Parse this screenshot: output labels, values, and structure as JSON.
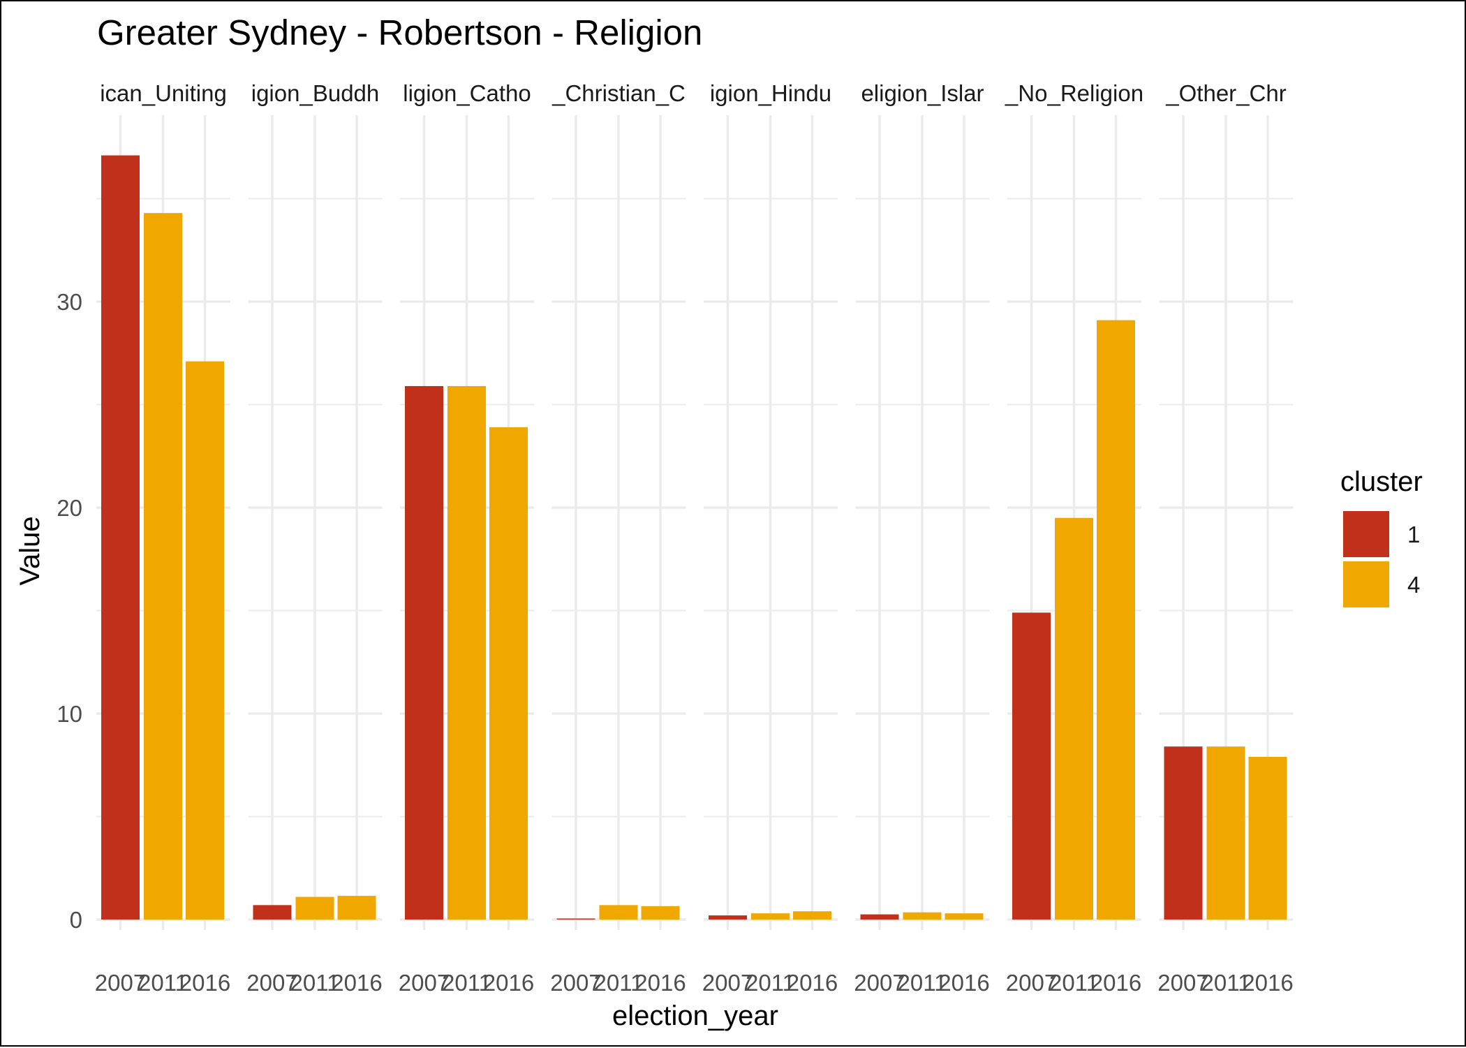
{
  "chart_data": {
    "type": "bar",
    "title": "Greater Sydney - Robertson - Religion",
    "xlabel": "election_year",
    "ylabel": "Value",
    "ylim": [
      0,
      37
    ],
    "y_ticks": [
      0,
      10,
      20,
      30
    ],
    "grid": true,
    "legend_placement": "right",
    "legend_title": "cluster",
    "colors": {
      "1": "#C0301A",
      "4": "#F0A800"
    },
    "strip_labels_visible": [
      "ican_Uniting",
      "igion_Buddh",
      "ligion_Catho",
      "_Christian_C",
      "igion_Hindu",
      "eligion_Islar",
      "_No_Religion",
      "_Other_Chr"
    ],
    "legend": [
      {
        "label": "1",
        "color": "#C0301A"
      },
      {
        "label": "4",
        "color": "#F0A800"
      }
    ],
    "panels": [
      {
        "label": "ican_Uniting",
        "bars": [
          {
            "year": "2007",
            "cluster": "1",
            "value": 37.1
          },
          {
            "year": "2011",
            "cluster": "4",
            "value": 34.3
          },
          {
            "year": "2016",
            "cluster": "4",
            "value": 27.1
          }
        ]
      },
      {
        "label": "igion_Buddh",
        "bars": [
          {
            "year": "2007",
            "cluster": "1",
            "value": 0.7
          },
          {
            "year": "2011",
            "cluster": "4",
            "value": 1.1
          },
          {
            "year": "2016",
            "cluster": "4",
            "value": 1.15
          }
        ]
      },
      {
        "label": "ligion_Catho",
        "bars": [
          {
            "year": "2007",
            "cluster": "1",
            "value": 25.9
          },
          {
            "year": "2011",
            "cluster": "4",
            "value": 25.9
          },
          {
            "year": "2016",
            "cluster": "4",
            "value": 23.9
          }
        ]
      },
      {
        "label": "_Christian_C",
        "bars": [
          {
            "year": "2007",
            "cluster": "1",
            "value": 0.05
          },
          {
            "year": "2011",
            "cluster": "4",
            "value": 0.7
          },
          {
            "year": "2016",
            "cluster": "4",
            "value": 0.65
          }
        ]
      },
      {
        "label": "igion_Hindu",
        "bars": [
          {
            "year": "2007",
            "cluster": "1",
            "value": 0.2
          },
          {
            "year": "2011",
            "cluster": "4",
            "value": 0.3
          },
          {
            "year": "2016",
            "cluster": "4",
            "value": 0.4
          }
        ]
      },
      {
        "label": "eligion_Islar",
        "bars": [
          {
            "year": "2007",
            "cluster": "1",
            "value": 0.25
          },
          {
            "year": "2011",
            "cluster": "4",
            "value": 0.35
          },
          {
            "year": "2016",
            "cluster": "4",
            "value": 0.3
          }
        ]
      },
      {
        "label": "_No_Religion",
        "bars": [
          {
            "year": "2007",
            "cluster": "1",
            "value": 14.9
          },
          {
            "year": "2011",
            "cluster": "4",
            "value": 19.5
          },
          {
            "year": "2016",
            "cluster": "4",
            "value": 29.1
          }
        ]
      },
      {
        "label": "_Other_Chr",
        "bars": [
          {
            "year": "2007",
            "cluster": "1",
            "value": 8.4
          },
          {
            "year": "2011",
            "cluster": "4",
            "value": 8.4
          },
          {
            "year": "2016",
            "cluster": "4",
            "value": 7.9
          }
        ]
      }
    ]
  }
}
